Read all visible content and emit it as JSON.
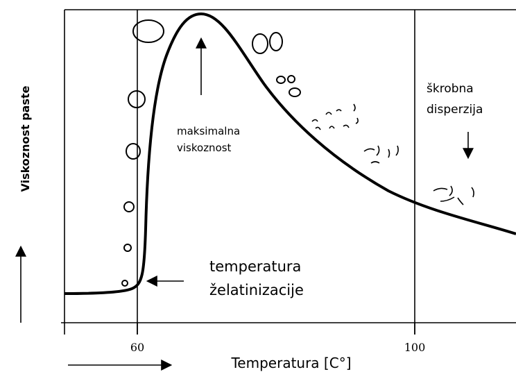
{
  "axes": {
    "y_label": "Viskoznost paste",
    "x_label": "Temperatura [C°]",
    "x_ticks": [
      60,
      100
    ]
  },
  "annotations": {
    "peak": [
      "maksimalna",
      "viskoznost"
    ],
    "dispersion": [
      "škrobna",
      "disperzija"
    ],
    "gelatinization": [
      "temperatura",
      "želatinizacije"
    ]
  }
}
